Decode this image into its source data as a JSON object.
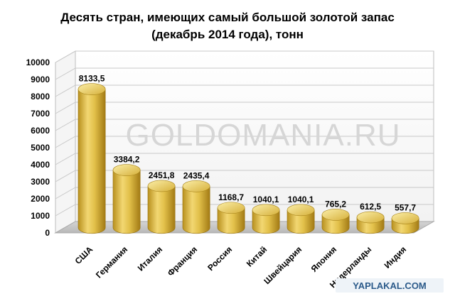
{
  "chart_data": {
    "type": "bar",
    "title": "Десять стран, имеющих самый большой золотой запас",
    "subtitle": "(декабрь 2014 года), тонн",
    "categories": [
      "США",
      "Германия",
      "Италия",
      "Франция",
      "Россия",
      "Китай",
      "Швейцария",
      "Япония",
      "Нидерланды",
      "Индия"
    ],
    "values": [
      8133.5,
      3384.2,
      2451.8,
      2435.4,
      1168.7,
      1040.1,
      1040.1,
      765.2,
      612.5,
      557.7
    ],
    "value_labels": [
      "8133,5",
      "3384,2",
      "2451,8",
      "2435,4",
      "1168,7",
      "1040,1",
      "1040,1",
      "765,2",
      "612,5",
      "557,7"
    ],
    "ylim": [
      0,
      10000
    ],
    "yticks": [
      0,
      1000,
      2000,
      3000,
      4000,
      5000,
      6000,
      7000,
      8000,
      9000,
      10000
    ],
    "xlabel": "",
    "ylabel": "",
    "grid": true,
    "bar_color": "#d9b43a",
    "watermark": "GOLDOMANIA.RU",
    "source_logo": "YAPLAKAL.COM"
  }
}
